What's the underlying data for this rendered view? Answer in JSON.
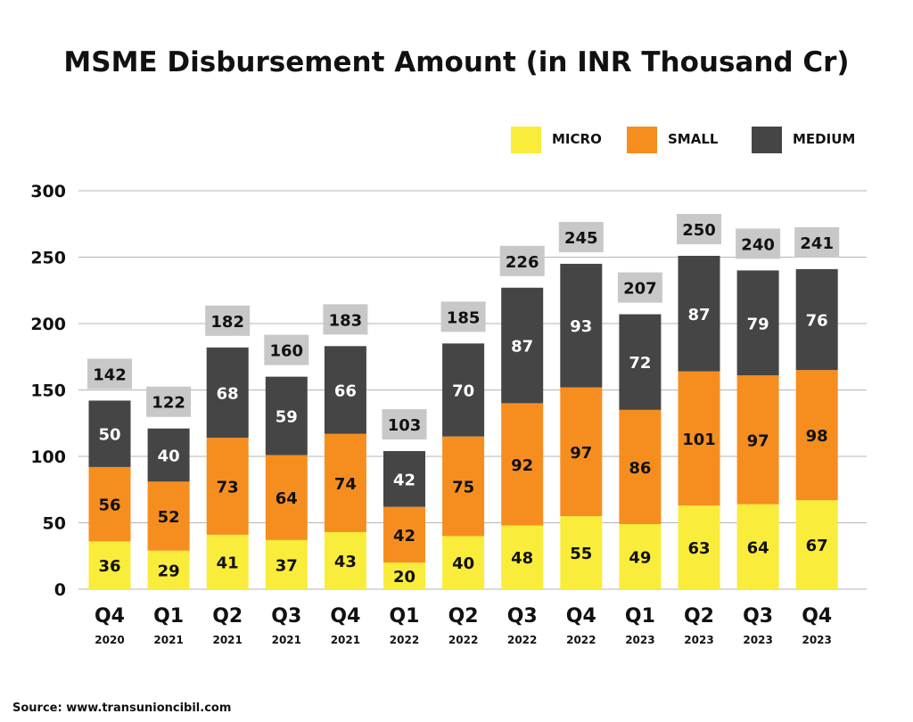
{
  "chart_data": {
    "type": "bar",
    "stacked": true,
    "title": "MSME Disbursement Amount (in INR Thousand Cr)",
    "categories": [
      {
        "quarter": "Q4",
        "year": "2020"
      },
      {
        "quarter": "Q1",
        "year": "2021"
      },
      {
        "quarter": "Q2",
        "year": "2021"
      },
      {
        "quarter": "Q3",
        "year": "2021"
      },
      {
        "quarter": "Q4",
        "year": "2021"
      },
      {
        "quarter": "Q1",
        "year": "2022"
      },
      {
        "quarter": "Q2",
        "year": "2022"
      },
      {
        "quarter": "Q3",
        "year": "2022"
      },
      {
        "quarter": "Q4",
        "year": "2022"
      },
      {
        "quarter": "Q1",
        "year": "2023"
      },
      {
        "quarter": "Q2",
        "year": "2023"
      },
      {
        "quarter": "Q3",
        "year": "2023"
      },
      {
        "quarter": "Q4",
        "year": "2023"
      }
    ],
    "series": [
      {
        "name": "MICRO",
        "color": "#F9EC3B",
        "label_color": "#111111",
        "values": [
          36,
          29,
          41,
          37,
          43,
          20,
          40,
          48,
          55,
          49,
          63,
          64,
          67
        ]
      },
      {
        "name": "SMALL",
        "color": "#F68E1F",
        "label_color": "#111111",
        "values": [
          56,
          52,
          73,
          64,
          74,
          42,
          75,
          92,
          97,
          86,
          101,
          97,
          98
        ]
      },
      {
        "name": "MEDIUM",
        "color": "#454545",
        "label_color": "#FFFFFF",
        "values": [
          50,
          40,
          68,
          59,
          66,
          42,
          70,
          87,
          93,
          72,
          87,
          79,
          76
        ]
      }
    ],
    "totals": [
      142,
      122,
      182,
      160,
      183,
      103,
      185,
      226,
      245,
      207,
      250,
      240,
      241
    ],
    "total_box_color": "#C8C8C8",
    "ylim": [
      0,
      300
    ],
    "yticks": [
      0,
      50,
      100,
      150,
      200,
      250,
      300
    ],
    "grid": true,
    "legend_position": "top-right",
    "xlabel": "",
    "ylabel": ""
  },
  "source": "Source: www.transunioncibil.com"
}
